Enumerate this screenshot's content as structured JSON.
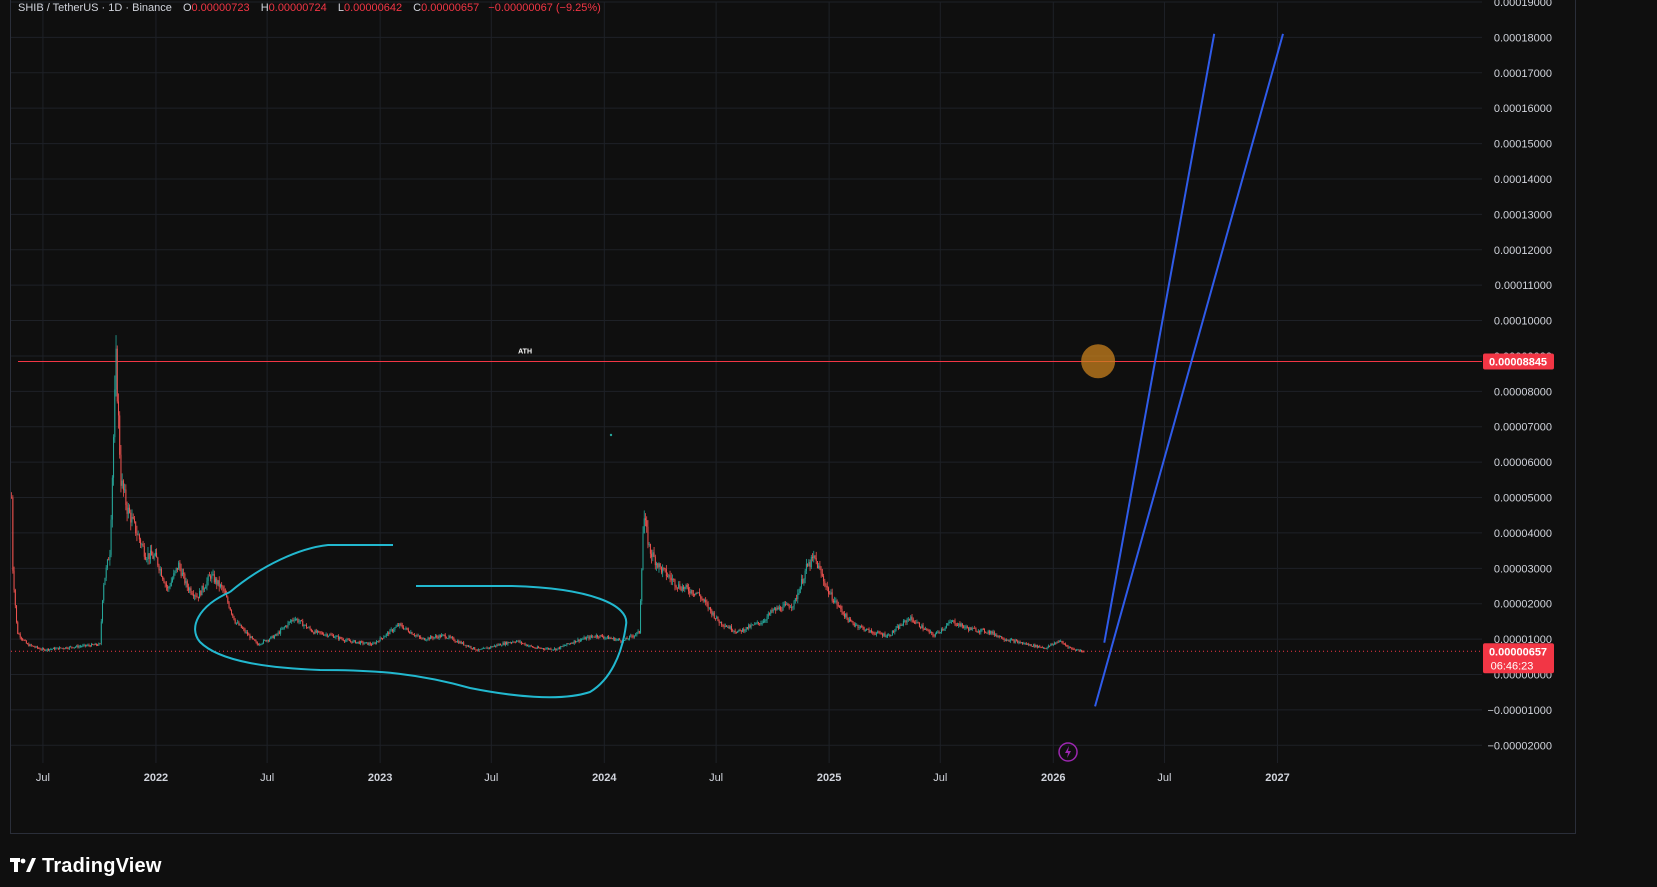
{
  "header": {
    "symbol": "SHIB / TetherUS · 1D · Binance",
    "open_label": "O",
    "open": "0.00000723",
    "high_label": "H",
    "high": "0.00000724",
    "low_label": "L",
    "low": "0.00000642",
    "close_label": "C",
    "close": "0.00000657",
    "change": "−0.00000067 (−9.25%)"
  },
  "price_tags": {
    "ath_value": "0.00008845",
    "last_value": "0.00000657",
    "countdown": "06:46:23"
  },
  "annotations": {
    "ath_label": "ATH"
  },
  "brand": {
    "name": "TradingView"
  },
  "colors": {
    "background": "#0f0f0f",
    "up": "#26a69a",
    "down": "#ef5350",
    "ath_line": "#f23645",
    "projection": "#2f5bea",
    "highlight": "#22b8cf",
    "marker": "#c8801e",
    "event": "#9c27b0"
  },
  "chart_data": {
    "type": "candlestick",
    "title": "SHIB / TetherUS · 1D · Binance",
    "y_axis": {
      "ylim": [
        -2.5e-05,
        0.00019
      ],
      "ticks": [
        "0.00019000",
        "0.00018000",
        "0.00017000",
        "0.00016000",
        "0.00015000",
        "0.00014000",
        "0.00013000",
        "0.00012000",
        "0.00011000",
        "0.00010000",
        "0.00009000",
        "0.00008000",
        "0.00007000",
        "0.00006000",
        "0.00005000",
        "0.00004000",
        "0.00003000",
        "0.00002000",
        "0.00001000",
        "0.00000000",
        "−0.00001000",
        "−0.00002000"
      ]
    },
    "x_axis": {
      "range": [
        "2021-05-10",
        "2027-11-30"
      ],
      "ticks": [
        {
          "label": "Jul",
          "date": "2021-07-01",
          "major": false
        },
        {
          "label": "2022",
          "date": "2022-01-01",
          "major": true
        },
        {
          "label": "Jul",
          "date": "2022-07-01",
          "major": false
        },
        {
          "label": "2023",
          "date": "2023-01-01",
          "major": true
        },
        {
          "label": "Jul",
          "date": "2023-07-01",
          "major": false
        },
        {
          "label": "2024",
          "date": "2024-01-01",
          "major": true
        },
        {
          "label": "Jul",
          "date": "2024-07-01",
          "major": false
        },
        {
          "label": "2025",
          "date": "2025-01-01",
          "major": true
        },
        {
          "label": "Jul",
          "date": "2025-07-01",
          "major": false
        },
        {
          "label": "2026",
          "date": "2026-01-01",
          "major": true
        },
        {
          "label": "Jul",
          "date": "2026-07-01",
          "major": false
        },
        {
          "label": "2027",
          "date": "2027-01-01",
          "major": true
        }
      ]
    },
    "price_path": [
      [
        "2021-05-11",
        5e-05
      ],
      [
        "2021-05-13",
        3e-05
      ],
      [
        "2021-05-20",
        1.2e-05
      ],
      [
        "2021-06-05",
        8.5e-06
      ],
      [
        "2021-07-01",
        7e-06
      ],
      [
        "2021-08-01",
        7.5e-06
      ],
      [
        "2021-09-01",
        8e-06
      ],
      [
        "2021-10-02",
        8.5e-06
      ],
      [
        "2021-10-07",
        2.5e-05
      ],
      [
        "2021-10-18",
        3.5e-05
      ],
      [
        "2021-10-28",
        8.85e-05
      ],
      [
        "2021-11-05",
        5.5e-05
      ],
      [
        "2021-11-15",
        4.7e-05
      ],
      [
        "2021-12-01",
        4e-05
      ],
      [
        "2021-12-15",
        3.4e-05
      ],
      [
        "2022-01-01",
        3.3e-05
      ],
      [
        "2022-01-20",
        2.4e-05
      ],
      [
        "2022-02-07",
        3.1e-05
      ],
      [
        "2022-02-20",
        2.5e-05
      ],
      [
        "2022-03-10",
        2.2e-05
      ],
      [
        "2022-03-31",
        2.8e-05
      ],
      [
        "2022-04-20",
        2.4e-05
      ],
      [
        "2022-05-10",
        1.5e-05
      ],
      [
        "2022-06-15",
        8.5e-06
      ],
      [
        "2022-07-15",
        1.1e-05
      ],
      [
        "2022-08-14",
        1.6e-05
      ],
      [
        "2022-09-15",
        1.2e-05
      ],
      [
        "2022-10-15",
        1.1e-05
      ],
      [
        "2022-11-09",
        9.5e-06
      ],
      [
        "2022-12-20",
        8.5e-06
      ],
      [
        "2023-02-01",
        1.4e-05
      ],
      [
        "2023-03-10",
        1e-05
      ],
      [
        "2023-04-15",
        1.1e-05
      ],
      [
        "2023-06-10",
        6.8e-06
      ],
      [
        "2023-07-15",
        8.5e-06
      ],
      [
        "2023-08-10",
        9.5e-06
      ],
      [
        "2023-09-10",
        7.5e-06
      ],
      [
        "2023-10-15",
        7.2e-06
      ],
      [
        "2023-11-15",
        9.5e-06
      ],
      [
        "2023-12-20",
        1.1e-05
      ],
      [
        "2024-02-01",
        9.5e-06
      ],
      [
        "2024-02-27",
        1.2e-05
      ],
      [
        "2024-03-05",
        4.5e-05
      ],
      [
        "2024-03-15",
        3.5e-05
      ],
      [
        "2024-04-01",
        3e-05
      ],
      [
        "2024-05-01",
        2.5e-05
      ],
      [
        "2024-06-01",
        2.3e-05
      ],
      [
        "2024-07-05",
        1.5e-05
      ],
      [
        "2024-08-05",
        1.2e-05
      ],
      [
        "2024-09-15",
        1.5e-05
      ],
      [
        "2024-10-01",
        1.8e-05
      ],
      [
        "2024-11-05",
        2e-05
      ],
      [
        "2024-11-25",
        3e-05
      ],
      [
        "2024-12-08",
        3.3e-05
      ],
      [
        "2025-01-01",
        2.3e-05
      ],
      [
        "2025-02-03",
        1.5e-05
      ],
      [
        "2025-03-10",
        1.2e-05
      ],
      [
        "2025-04-08",
        1.1e-05
      ],
      [
        "2025-05-12",
        1.6e-05
      ],
      [
        "2025-06-20",
        1.1e-05
      ],
      [
        "2025-07-20",
        1.5e-05
      ],
      [
        "2025-08-15",
        1.3e-05
      ],
      [
        "2025-09-20",
        1.2e-05
      ],
      [
        "2025-10-15",
        1e-05
      ],
      [
        "2025-11-20",
        8.5e-06
      ],
      [
        "2025-12-20",
        7.5e-06
      ],
      [
        "2026-01-10",
        9.5e-06
      ],
      [
        "2026-02-01",
        7.2e-06
      ],
      [
        "2026-02-20",
        6.6e-06
      ]
    ],
    "last_price": 6.57e-06,
    "ath_level": 8.845e-05,
    "projection_lines": [
      {
        "from": [
          "2026-03-25",
          9e-06
        ],
        "to": [
          "2026-09-20",
          0.000181
        ]
      },
      {
        "from": [
          "2026-03-10",
          -9e-06
        ],
        "to": [
          "2027-01-10",
          0.000181
        ]
      }
    ],
    "ath_label_anchor": [
      "2023-08-25",
      8.85e-05
    ],
    "marker_point": [
      "2026-03-15",
      8.85e-05
    ],
    "event_marker_date": "2026-01-25",
    "highlight_loop": [
      [
        "2022-04-20",
        2.4e-05
      ],
      [
        "2022-07-01",
        3.3e-05
      ],
      [
        "2022-09-20",
        3.7e-05
      ],
      [
        "2023-03-20",
        3.7e-05
      ]
    ]
  }
}
